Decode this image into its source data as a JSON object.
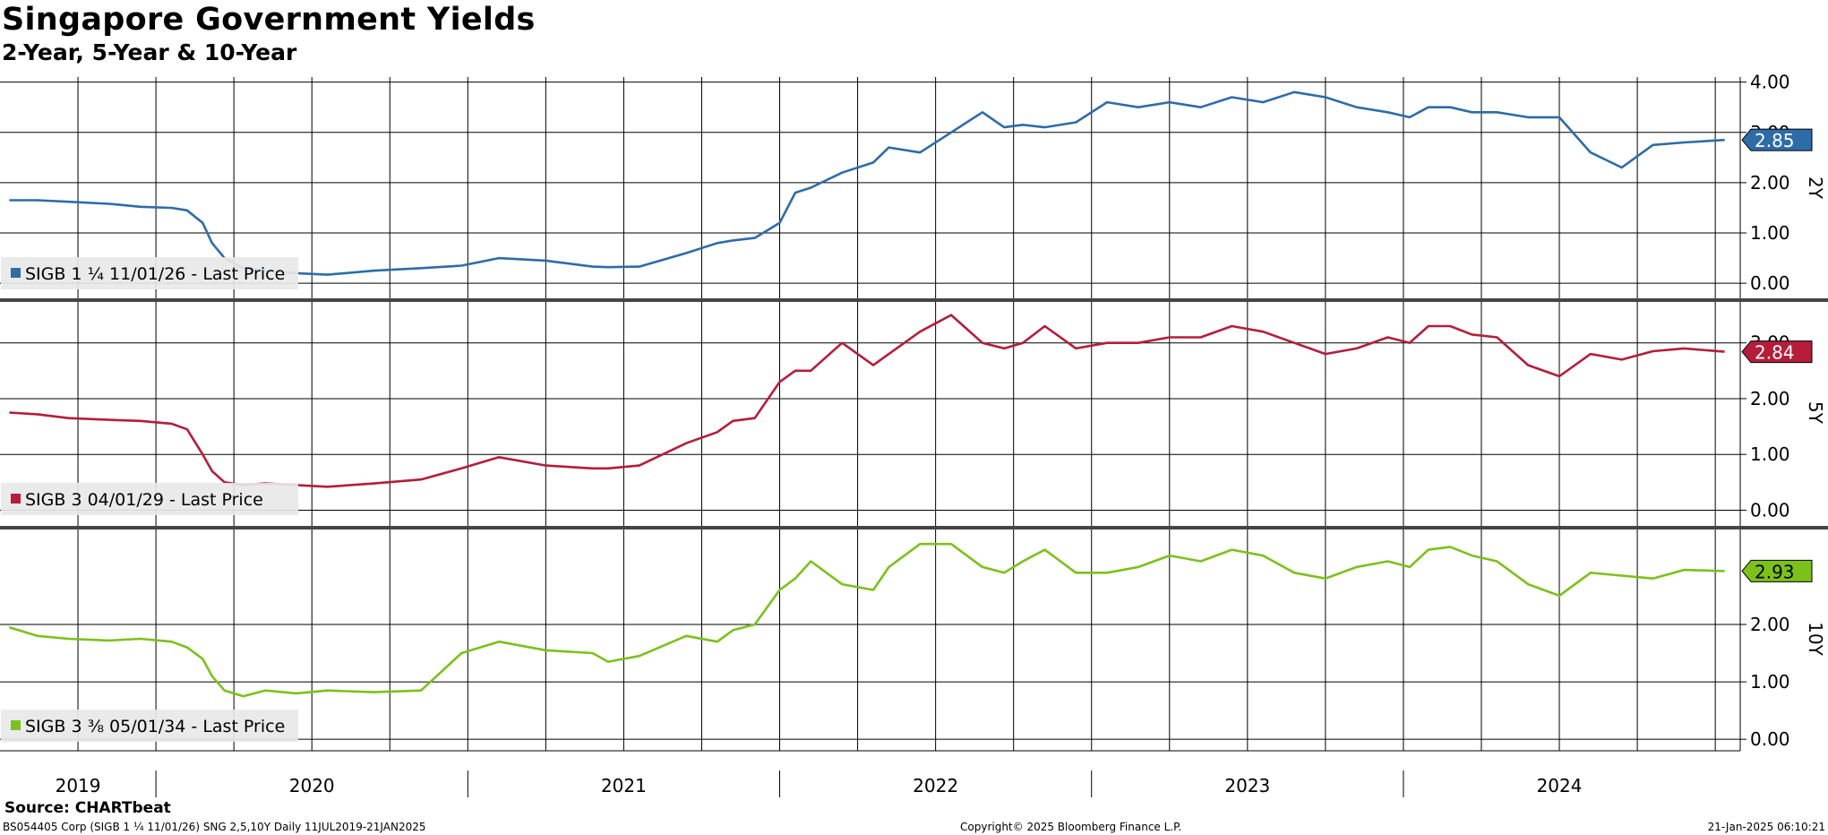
{
  "header": {
    "title": "Singapore Government Yields",
    "subtitle": "2-Year, 5-Year & 10-Year"
  },
  "footer": {
    "source": "Source: CHARTbeat",
    "left": "BS054405 Corp (SIGB 1 ¼ 11/01/26) SNG 2,5,10Y  Daily 11JUL2019-21JAN2025",
    "center": "Copyright© 2025 Bloomberg Finance L.P.",
    "right": "21-Jan-2025 06:10:21"
  },
  "chart_data": {
    "type": "line",
    "x_axis": {
      "years": [
        "2019",
        "2020",
        "2021",
        "2022",
        "2023",
        "2024"
      ],
      "range": [
        "2019-07-11",
        "2025-01-21"
      ]
    },
    "panels": [
      {
        "axis_title": "2Y",
        "legend": "SIGB 1 ¼ 11/01/26 - Last Price",
        "color": "#2e6ca8",
        "last_value_label": "2.85",
        "ticks": [
          "4.00",
          "3.00",
          "2.00",
          "1.00",
          "0.00"
        ],
        "ylim": [
          -0.3,
          4.1
        ],
        "x": [
          2019.53,
          2019.62,
          2019.72,
          2019.85,
          2019.95,
          2020.05,
          2020.1,
          2020.15,
          2020.18,
          2020.22,
          2020.28,
          2020.35,
          2020.45,
          2020.55,
          2020.7,
          2020.85,
          2020.98,
          2021.1,
          2021.25,
          2021.4,
          2021.45,
          2021.55,
          2021.7,
          2021.8,
          2021.85,
          2021.92,
          2022.0,
          2022.05,
          2022.1,
          2022.2,
          2022.3,
          2022.35,
          2022.45,
          2022.55,
          2022.65,
          2022.72,
          2022.78,
          2022.85,
          2022.95,
          2023.05,
          2023.15,
          2023.25,
          2023.35,
          2023.45,
          2023.55,
          2023.65,
          2023.75,
          2023.85,
          2023.95,
          2024.02,
          2024.08,
          2024.15,
          2024.22,
          2024.3,
          2024.4,
          2024.5,
          2024.6,
          2024.7,
          2024.8,
          2024.9,
          2025.03
        ],
        "y": [
          1.65,
          1.65,
          1.62,
          1.58,
          1.52,
          1.5,
          1.45,
          1.2,
          0.8,
          0.5,
          0.3,
          0.25,
          0.2,
          0.17,
          0.25,
          0.3,
          0.35,
          0.5,
          0.45,
          0.33,
          0.32,
          0.33,
          0.6,
          0.8,
          0.85,
          0.9,
          1.2,
          1.8,
          1.9,
          2.2,
          2.4,
          2.7,
          2.6,
          3.0,
          3.4,
          3.1,
          3.15,
          3.1,
          3.2,
          3.6,
          3.5,
          3.6,
          3.5,
          3.7,
          3.6,
          3.8,
          3.7,
          3.5,
          3.4,
          3.3,
          3.5,
          3.5,
          3.4,
          3.4,
          3.3,
          3.3,
          2.6,
          2.3,
          2.75,
          2.8,
          2.85
        ]
      },
      {
        "axis_title": "5Y",
        "legend": "SIGB 3 04/01/29 - Last Price",
        "color": "#b51d3a",
        "last_value_label": "2.84",
        "ticks": [
          "3.00",
          "2.00",
          "1.00",
          "0.00"
        ],
        "ylim": [
          -0.25,
          3.75
        ],
        "x": [
          2019.53,
          2019.62,
          2019.72,
          2019.85,
          2019.95,
          2020.05,
          2020.1,
          2020.15,
          2020.18,
          2020.22,
          2020.28,
          2020.35,
          2020.45,
          2020.55,
          2020.7,
          2020.85,
          2020.98,
          2021.1,
          2021.25,
          2021.4,
          2021.45,
          2021.55,
          2021.7,
          2021.8,
          2021.85,
          2021.92,
          2022.0,
          2022.05,
          2022.1,
          2022.2,
          2022.3,
          2022.35,
          2022.45,
          2022.55,
          2022.65,
          2022.72,
          2022.78,
          2022.85,
          2022.95,
          2023.05,
          2023.15,
          2023.25,
          2023.35,
          2023.45,
          2023.55,
          2023.65,
          2023.75,
          2023.85,
          2023.95,
          2024.02,
          2024.08,
          2024.15,
          2024.22,
          2024.3,
          2024.4,
          2024.5,
          2024.6,
          2024.7,
          2024.8,
          2024.9,
          2025.03
        ],
        "y": [
          1.75,
          1.72,
          1.65,
          1.62,
          1.6,
          1.55,
          1.45,
          1.0,
          0.7,
          0.5,
          0.45,
          0.48,
          0.45,
          0.42,
          0.48,
          0.55,
          0.75,
          0.95,
          0.8,
          0.75,
          0.75,
          0.8,
          1.2,
          1.4,
          1.6,
          1.65,
          2.3,
          2.5,
          2.5,
          3.0,
          2.6,
          2.8,
          3.2,
          3.5,
          3.0,
          2.9,
          3.0,
          3.3,
          2.9,
          3.0,
          3.0,
          3.1,
          3.1,
          3.3,
          3.2,
          3.0,
          2.8,
          2.9,
          3.1,
          3.0,
          3.3,
          3.3,
          3.15,
          3.1,
          2.6,
          2.4,
          2.8,
          2.7,
          2.85,
          2.9,
          2.84
        ]
      },
      {
        "axis_title": "10Y",
        "legend": "SIGB 3 ⅜ 05/01/34 - Last Price",
        "color": "#7cc11b",
        "last_value_label": "2.93",
        "ticks": [
          "2.00",
          "1.00",
          "0.00"
        ],
        "ylim": [
          -0.2,
          3.7
        ],
        "x": [
          2019.53,
          2019.62,
          2019.72,
          2019.85,
          2019.95,
          2020.05,
          2020.1,
          2020.15,
          2020.18,
          2020.22,
          2020.28,
          2020.35,
          2020.45,
          2020.55,
          2020.7,
          2020.85,
          2020.98,
          2021.1,
          2021.25,
          2021.4,
          2021.45,
          2021.55,
          2021.7,
          2021.8,
          2021.85,
          2021.92,
          2022.0,
          2022.05,
          2022.1,
          2022.2,
          2022.3,
          2022.35,
          2022.45,
          2022.55,
          2022.65,
          2022.72,
          2022.78,
          2022.85,
          2022.95,
          2023.05,
          2023.15,
          2023.25,
          2023.35,
          2023.45,
          2023.55,
          2023.65,
          2023.75,
          2023.85,
          2023.95,
          2024.02,
          2024.08,
          2024.15,
          2024.22,
          2024.3,
          2024.4,
          2024.5,
          2024.6,
          2024.7,
          2024.8,
          2024.9,
          2025.03
        ],
        "y": [
          1.95,
          1.8,
          1.75,
          1.72,
          1.75,
          1.7,
          1.6,
          1.4,
          1.1,
          0.85,
          0.75,
          0.85,
          0.8,
          0.85,
          0.82,
          0.85,
          1.5,
          1.7,
          1.55,
          1.5,
          1.35,
          1.45,
          1.8,
          1.7,
          1.9,
          2.0,
          2.6,
          2.8,
          3.1,
          2.7,
          2.6,
          3.0,
          3.4,
          3.4,
          3.0,
          2.9,
          3.1,
          3.3,
          2.9,
          2.9,
          3.0,
          3.2,
          3.1,
          3.3,
          3.2,
          2.9,
          2.8,
          3.0,
          3.1,
          3.0,
          3.3,
          3.35,
          3.2,
          3.1,
          2.7,
          2.5,
          2.9,
          2.85,
          2.8,
          2.95,
          2.93
        ]
      }
    ]
  }
}
